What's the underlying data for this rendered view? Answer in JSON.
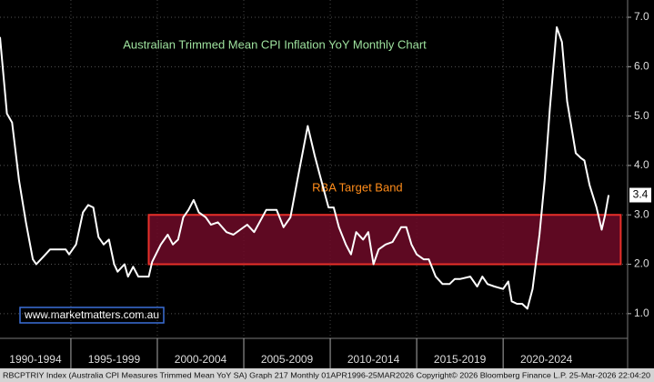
{
  "chart_data": {
    "type": "line",
    "title": "Australian Trimmed Mean CPI Inflation YoY Monthly Chart",
    "x": [
      1990.9,
      1991.3,
      1991.6,
      1992.0,
      1992.4,
      1992.8,
      1993.0,
      1993.4,
      1993.8,
      1994.7,
      1994.9,
      1995.3,
      1995.7,
      1996.0,
      1996.3,
      1996.6,
      1996.9,
      1997.2,
      1997.5,
      1997.7,
      1998.1,
      1998.3,
      1998.6,
      1998.9,
      1999.5,
      1999.7,
      2000.2,
      2000.6,
      2000.9,
      2001.2,
      2001.5,
      2001.8,
      2002.1,
      2002.4,
      2002.8,
      2003.1,
      2003.5,
      2004.0,
      2004.4,
      2004.8,
      2005.2,
      2005.6,
      2006.3,
      2006.9,
      2007.3,
      2007.7,
      2008.1,
      2008.4,
      2008.7,
      2009.1,
      2009.4,
      2009.9,
      2010.2,
      2010.5,
      2010.9,
      2011.2,
      2011.5,
      2011.9,
      2012.2,
      2012.5,
      2012.8,
      2013.2,
      2013.6,
      2014.1,
      2014.4,
      2014.7,
      2015.0,
      2015.4,
      2015.7,
      2016.1,
      2016.5,
      2016.9,
      2017.2,
      2017.5,
      2018.1,
      2018.5,
      2018.8,
      2019.1,
      2019.5,
      2020.0,
      2020.3,
      2020.5,
      2020.8,
      2021.1,
      2021.4,
      2021.7,
      2022.1,
      2022.4,
      2022.7,
      2023.1,
      2023.4,
      2023.7,
      2024.2,
      2024.5,
      2024.7,
      2025.0,
      2025.4,
      2025.7,
      2025.9,
      2026.1
    ],
    "series": [
      {
        "name": "Trimmed Mean CPI YoY",
        "color": "#ffffff",
        "values": [
          6.6,
          5.05,
          4.87,
          3.7,
          2.85,
          2.1,
          2.0,
          2.15,
          2.3,
          2.3,
          2.2,
          2.4,
          3.05,
          3.2,
          3.15,
          2.55,
          2.4,
          2.5,
          2.0,
          1.85,
          2.0,
          1.75,
          1.95,
          1.75,
          1.75,
          2.05,
          2.4,
          2.6,
          2.4,
          2.5,
          2.95,
          3.1,
          3.3,
          3.05,
          2.95,
          2.8,
          2.85,
          2.65,
          2.6,
          2.7,
          2.8,
          2.65,
          3.1,
          3.1,
          2.75,
          2.95,
          3.7,
          4.25,
          4.8,
          4.2,
          3.8,
          3.15,
          3.15,
          2.75,
          2.4,
          2.2,
          2.65,
          2.5,
          2.65,
          2.0,
          2.3,
          2.4,
          2.45,
          2.75,
          2.75,
          2.4,
          2.2,
          2.1,
          2.1,
          1.75,
          1.6,
          1.6,
          1.7,
          1.7,
          1.75,
          1.55,
          1.75,
          1.6,
          1.55,
          1.5,
          1.65,
          1.25,
          1.2,
          1.2,
          1.1,
          1.5,
          2.6,
          3.7,
          5.15,
          6.8,
          6.5,
          5.3,
          4.25,
          4.15,
          4.1,
          3.6,
          3.15,
          2.7,
          3.0,
          3.4
        ]
      }
    ],
    "last_value": 3.4,
    "band": {
      "label": "RBA Target Band",
      "low": 2,
      "high": 3,
      "x_start": 1999.5,
      "x_end": 2026.8,
      "fill": "#6e0a28",
      "edge": "#e8302a"
    },
    "xlim": [
      1990.9,
      2027.2
    ],
    "x_periods": [
      {
        "label": "1990-1994",
        "start": 1990,
        "end": 1995
      },
      {
        "label": "1995-1999",
        "start": 1995,
        "end": 2000
      },
      {
        "label": "2000-2004",
        "start": 2000,
        "end": 2005
      },
      {
        "label": "2005-2009",
        "start": 2005,
        "end": 2010
      },
      {
        "label": "2010-2014",
        "start": 2010,
        "end": 2015
      },
      {
        "label": "2015-2019",
        "start": 2015,
        "end": 2020
      },
      {
        "label": "2020-2024",
        "start": 2020,
        "end": 2025
      }
    ],
    "ylim": [
      0.5,
      7.35
    ],
    "yticks": [
      {
        "value": 1,
        "label": "1.0"
      },
      {
        "value": 2,
        "label": "2.0"
      },
      {
        "value": 3,
        "label": "3.0"
      },
      {
        "value": 4,
        "label": "4.0"
      },
      {
        "value": 5,
        "label": "5.0"
      },
      {
        "value": 6,
        "label": "6.0"
      },
      {
        "value": 7,
        "label": "7.0"
      }
    ],
    "grid": true,
    "watermark": "www.marketmatters.com.au",
    "footer": "RBCPTRIY Index (Australia CPI Measures Trimmed Mean YoY SA) Graph 217 Monthly 01APR1996-25MAR2026 Copyright© 2026 Bloomberg Finance L.P.  25-Mar-2026 22:04:20"
  }
}
